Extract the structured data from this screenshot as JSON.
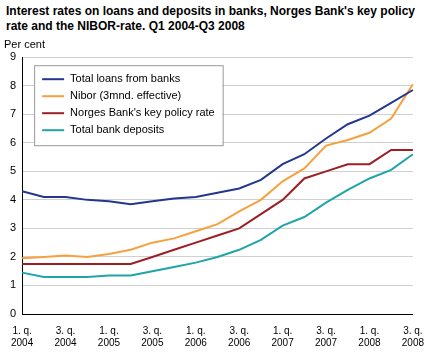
{
  "chart_data": {
    "type": "line",
    "title": "Interest rates on loans and deposits in banks, Norges Bank's key policy rate and the NIBOR-rate. Q1 2004-Q3 2008",
    "ylabel": "Per cent",
    "categories": [
      "1. q. 2004",
      null,
      "3. q. 2004",
      null,
      "1. q. 2005",
      null,
      "3. q. 2005",
      null,
      "1. q. 2006",
      null,
      "3. q. 2006",
      null,
      "1. q. 2007",
      null,
      "3. q. 2007",
      null,
      "1. q. 2008",
      null,
      "3. q. 2008"
    ],
    "series": [
      {
        "name": "Total loans from banks",
        "color": "#24378f",
        "values": [
          4.3,
          4.1,
          4.1,
          4.0,
          3.95,
          3.85,
          3.95,
          4.05,
          4.1,
          4.25,
          4.4,
          4.7,
          5.25,
          5.6,
          6.15,
          6.65,
          6.95,
          7.4,
          7.85
        ]
      },
      {
        "name": "Nibor (3mnd. effective)",
        "color": "#f5a23e",
        "values": [
          1.95,
          2.0,
          2.05,
          2.0,
          2.1,
          2.25,
          2.5,
          2.65,
          2.9,
          3.15,
          3.6,
          4.0,
          4.65,
          5.1,
          5.9,
          6.1,
          6.35,
          6.85,
          8.05
        ]
      },
      {
        "name": "Norges Bank's key policy rate",
        "color": "#9c1f24",
        "values": [
          1.75,
          1.75,
          1.75,
          1.75,
          1.75,
          1.75,
          2.0,
          2.25,
          2.5,
          2.75,
          3.0,
          3.5,
          4.0,
          4.75,
          5.0,
          5.25,
          5.25,
          5.75,
          5.75
        ]
      },
      {
        "name": "Total bank deposits",
        "color": "#1fa5a9",
        "values": [
          1.45,
          1.3,
          1.3,
          1.3,
          1.35,
          1.35,
          1.5,
          1.65,
          1.8,
          2.0,
          2.25,
          2.6,
          3.1,
          3.4,
          3.9,
          4.35,
          4.75,
          5.05,
          5.6
        ]
      }
    ],
    "ylim": [
      0,
      9
    ],
    "yticks": [
      0,
      1,
      2,
      3,
      4,
      5,
      6,
      7,
      8,
      9
    ],
    "grid": true,
    "legend": "upper left"
  }
}
